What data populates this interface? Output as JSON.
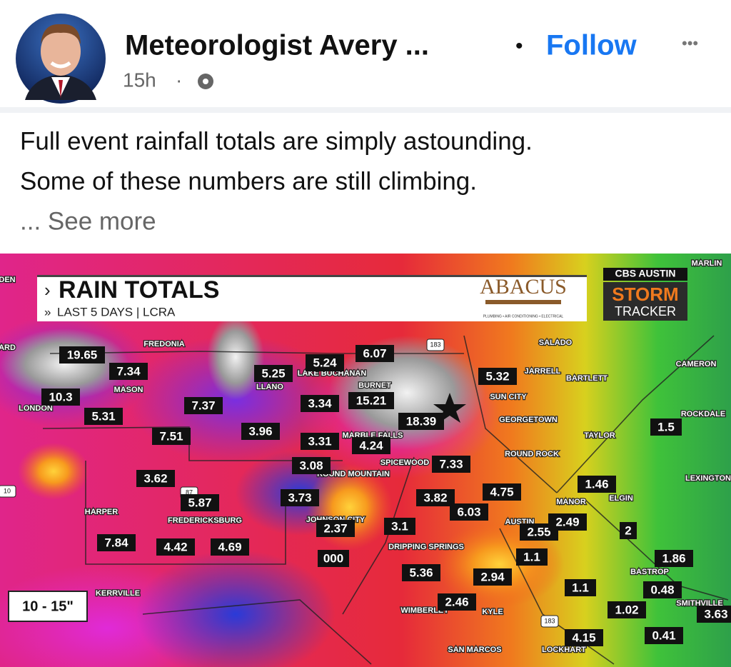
{
  "post": {
    "author": "Meteorologist Avery ...",
    "separator": "•",
    "follow": "Follow",
    "more_menu": "•••",
    "time": "15h",
    "time_dot": "·",
    "text_lines": [
      "Full event rainfall totals are simply astounding.",
      "Some of these numbers are still climbing."
    ],
    "see_more": "... See more"
  },
  "map": {
    "title": "RAIN TOTALS",
    "subtitle": "LAST 5 DAYS | LCRA",
    "sponsor": "ABACUS",
    "sponsor_tagline": "PLUMBING • AIR CONDITIONING • ELECTRICAL",
    "station": "CBS AUSTIN",
    "brand_top": "STORM",
    "brand_bottom": "TRACKER",
    "legend": "10 - 15\"",
    "totals": [
      "19.65",
      "7.34",
      "10.3",
      "5.31",
      "7.37",
      "7.51",
      "3.96",
      "5.24",
      "6.07",
      "5.25",
      "3.34",
      "15.21",
      "18.39",
      "3.31",
      "4.24",
      "3.08",
      "7.33",
      "3.62",
      "5.87",
      "3.73",
      "3.82",
      "6.03",
      "4.75",
      "5.32",
      "1.5",
      "1.46",
      "2.37",
      "3.1",
      "2.55",
      "2.49",
      "2",
      "7.84",
      "4.42",
      "4.69",
      "000",
      "1.1",
      "1.86",
      "5.36",
      "2.94",
      "1.1",
      "0.48",
      "2.46",
      "1.02",
      "3.63",
      "4.15",
      "0.41"
    ],
    "places": [
      "FREDONIA",
      "MASON",
      "LONDON",
      "LLANO",
      "LAKE BUCHANAN",
      "BURNET",
      "SUN CITY",
      "GEORGETOWN",
      "SALADO",
      "JARRELL",
      "BARTLETT",
      "CAMERON",
      "ROCKDALE",
      "TAYLOR",
      "ROUND ROCK",
      "MARBLE FALLS",
      "SPICEWOOD",
      "ROUND MOUNTAIN",
      "LEXINGTON",
      "MANOR",
      "ELGIN",
      "HARPER",
      "FREDERICKSBURG",
      "JOHNSON CITY",
      "AUSTIN",
      "DRIPPING SPRINGS",
      "BASTROP",
      "KERRVILLE",
      "WIMBERLEY",
      "KYLE",
      "SAN MARCOS",
      "LOCKHART",
      "SMITHVILLE",
      "MARLIN",
      "DEN",
      "ARD"
    ],
    "highways": [
      "183",
      "87",
      "10",
      "183"
    ]
  }
}
